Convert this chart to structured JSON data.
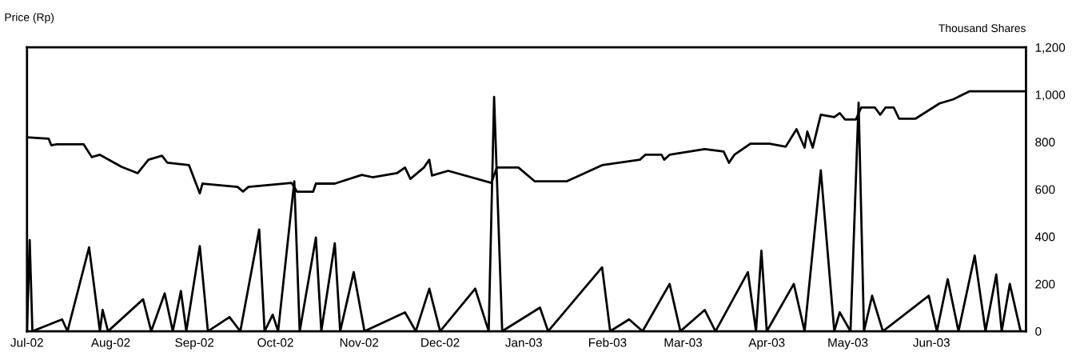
{
  "chart_data": {
    "type": "line",
    "ylabel": "Price (Rp)",
    "y2label": "Thousand Shares",
    "xlim": [
      "2002-07-01",
      "2003-07-06"
    ],
    "xticks": [
      {
        "value": "2002-07-01",
        "label": "Jul-02"
      },
      {
        "value": "2002-08-01",
        "label": "Aug-02"
      },
      {
        "value": "2002-09-01",
        "label": "Sep-02"
      },
      {
        "value": "2002-10-01",
        "label": "Oct-02"
      },
      {
        "value": "2002-11-01",
        "label": "Nov-02"
      },
      {
        "value": "2002-12-01",
        "label": "Dec-02"
      },
      {
        "value": "2003-01-01",
        "label": "Jan-03"
      },
      {
        "value": "2003-02-01",
        "label": "Feb-03"
      },
      {
        "value": "2003-03-01",
        "label": "Mar-03"
      },
      {
        "value": "2003-04-01",
        "label": "Apr-03"
      },
      {
        "value": "2003-05-01",
        "label": "May-03"
      },
      {
        "value": "2003-06-01",
        "label": "Jun-03"
      }
    ],
    "ylim": [
      0,
      1200
    ],
    "yticks": [
      0,
      200,
      400,
      600,
      800,
      {
        "value": 1000,
        "label": "1,000"
      },
      {
        "value": 1200,
        "label": "1,200"
      }
    ],
    "series": [
      {
        "color": "#000000",
        "x": [
          "2002-07-01",
          "2002-07-09",
          "2002-07-10",
          "2002-07-12",
          "2002-07-22",
          "2002-07-25",
          "2002-07-28",
          "2002-08-05",
          "2002-08-11",
          "2002-08-15",
          "2002-08-20",
          "2002-08-22",
          "2002-08-30",
          "2002-09-03",
          "2002-09-04",
          "2002-09-17",
          "2002-09-19",
          "2002-09-21",
          "2002-10-07",
          "2002-10-09",
          "2002-10-15",
          "2002-10-16",
          "2002-10-23",
          "2002-11-02",
          "2002-11-06",
          "2002-11-15",
          "2002-11-18",
          "2002-11-20",
          "2002-11-25",
          "2002-11-27",
          "2002-11-28",
          "2002-12-04",
          "2002-12-20",
          "2002-12-22",
          "2002-12-30",
          "2003-01-05",
          "2003-01-17",
          "2003-01-30",
          "2003-02-13",
          "2003-02-15",
          "2003-02-21",
          "2003-02-22",
          "2003-02-24",
          "2003-03-09",
          "2003-03-16",
          "2003-03-18",
          "2003-03-20",
          "2003-03-26",
          "2003-04-02",
          "2003-04-08",
          "2003-04-12",
          "2003-04-15",
          "2003-04-16",
          "2003-04-18",
          "2003-04-21",
          "2003-04-26",
          "2003-04-28",
          "2003-04-30",
          "2003-05-04",
          "2003-05-06",
          "2003-05-11",
          "2003-05-13",
          "2003-05-15",
          "2003-05-18",
          "2003-05-20",
          "2003-05-26",
          "2003-06-04",
          "2003-06-09",
          "2003-06-15",
          "2003-07-06"
        ],
        "values": [
          820,
          814,
          786,
          790,
          790,
          736,
          746,
          695,
          668,
          725,
          742,
          712,
          702,
          583,
          624,
          610,
          590,
          610,
          627,
          590,
          590,
          624,
          624,
          661,
          651,
          668,
          692,
          644,
          692,
          725,
          658,
          678,
          627,
          692,
          692,
          634,
          634,
          702,
          725,
          746,
          746,
          725,
          746,
          770,
          760,
          712,
          746,
          793,
          793,
          780,
          854,
          776,
          844,
          776,
          915,
          905,
          922,
          895,
          895,
          946,
          946,
          915,
          946,
          946,
          898,
          898,
          963,
          980,
          1014,
          1014
        ]
      },
      {
        "color": "#000000",
        "x": [
          "2002-07-01",
          "2002-07-02",
          "2002-07-03",
          "2002-07-14",
          "2002-07-16",
          "2002-07-24",
          "2002-07-28",
          "2002-07-29",
          "2002-07-31",
          "2002-08-13",
          "2002-08-16",
          "2002-08-21",
          "2002-08-24",
          "2002-08-27",
          "2002-08-29",
          "2002-09-03",
          "2002-09-06",
          "2002-09-14",
          "2002-09-18",
          "2002-09-25",
          "2002-09-27",
          "2002-09-30",
          "2002-10-02",
          "2002-10-08",
          "2002-10-10",
          "2002-10-16",
          "2002-10-18",
          "2002-10-23",
          "2002-10-25",
          "2002-10-30",
          "2002-11-03",
          "2002-11-18",
          "2002-11-22",
          "2002-11-27",
          "2002-12-01",
          "2002-12-14",
          "2002-12-19",
          "2002-12-21",
          "2002-12-24",
          "2003-01-07",
          "2003-01-10",
          "2003-01-30",
          "2003-02-02",
          "2003-02-09",
          "2003-02-14",
          "2003-02-24",
          "2003-02-28",
          "2003-03-09",
          "2003-03-13",
          "2003-03-25",
          "2003-03-28",
          "2003-03-30",
          "2003-04-01",
          "2003-04-11",
          "2003-04-15",
          "2003-04-21",
          "2003-04-26",
          "2003-04-28",
          "2003-05-02",
          "2003-05-05",
          "2003-05-07",
          "2003-05-10",
          "2003-05-14",
          "2003-05-31",
          "2003-06-03",
          "2003-06-07",
          "2003-06-11",
          "2003-06-17",
          "2003-06-21",
          "2003-06-25",
          "2003-06-27",
          "2003-06-30",
          "2003-07-04"
        ],
        "values": [
          0,
          385,
          0,
          50,
          0,
          355,
          0,
          90,
          0,
          135,
          0,
          160,
          0,
          170,
          0,
          360,
          0,
          60,
          0,
          430,
          0,
          70,
          0,
          634,
          0,
          396,
          0,
          372,
          0,
          250,
          0,
          80,
          0,
          180,
          0,
          180,
          0,
          990,
          0,
          100,
          0,
          270,
          0,
          50,
          0,
          200,
          0,
          90,
          0,
          250,
          0,
          340,
          0,
          200,
          0,
          680,
          0,
          80,
          0,
          966,
          0,
          150,
          0,
          150,
          0,
          220,
          0,
          320,
          0,
          240,
          0,
          200,
          0
        ]
      }
    ]
  }
}
